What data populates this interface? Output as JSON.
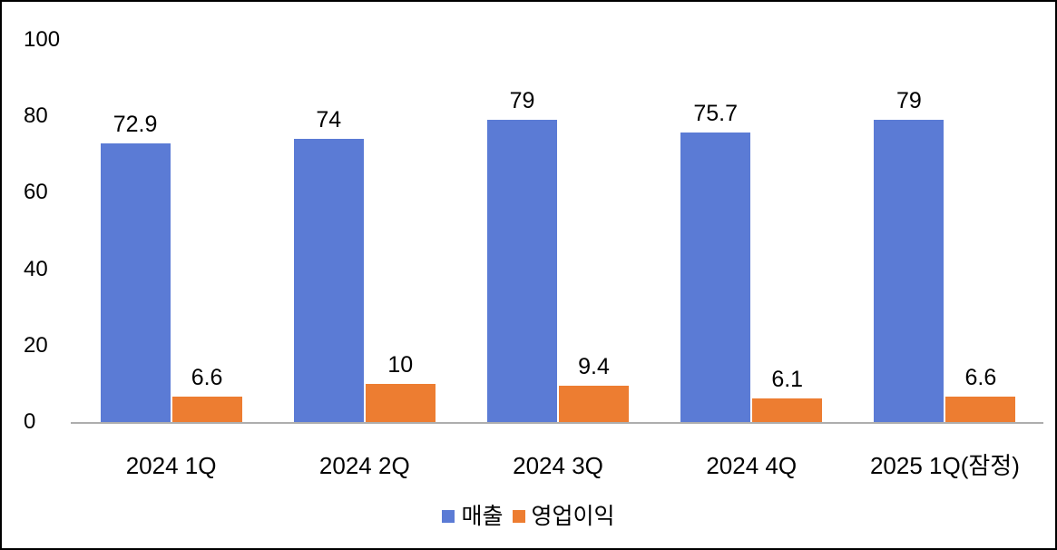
{
  "chart_data": {
    "type": "bar",
    "title": "",
    "xlabel": "",
    "ylabel": "",
    "categories": [
      "2024 1Q",
      "2024 2Q",
      "2024 3Q",
      "2024 4Q",
      "2025 1Q(잠정)"
    ],
    "series": [
      {
        "key": "revenue",
        "name": "매출",
        "color": "#5B7BD5",
        "values": [
          72.9,
          74,
          79,
          75.7,
          79
        ]
      },
      {
        "key": "operating-profit",
        "name": "영업이익",
        "color": "#ED7D31",
        "values": [
          6.6,
          10,
          9.4,
          6.1,
          6.6
        ]
      }
    ],
    "ylim": [
      0,
      100
    ],
    "yticks": [
      0,
      20,
      40,
      60,
      80,
      100
    ],
    "grid": false,
    "legend_position": "bottom",
    "axis_line_color": "#aeaeae",
    "text_color": "#000000",
    "border_color": "#000000"
  }
}
